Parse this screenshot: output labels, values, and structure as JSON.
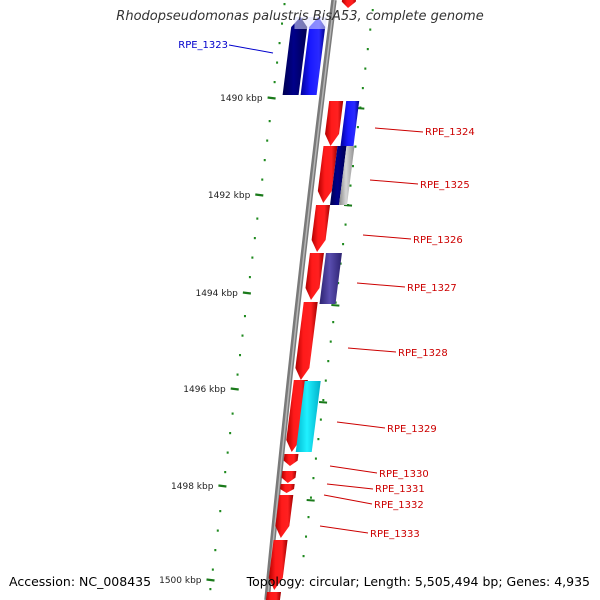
{
  "title": "Rhodopseudomonas palustris BisA53, complete genome",
  "footer": {
    "accession": "Accession: NC_008435",
    "summary": "Topology: circular; Length: 5,505,494 bp; Genes: 4,935"
  },
  "colors": {
    "forward_cds": "#ff0000",
    "reverse_cds": "#0000ff",
    "backbone": "#808080",
    "ticks": "#1a7a1a",
    "dots": "#1f8a1f",
    "label_red": "#cc0000",
    "label_blue": "#0000cc",
    "navy": "#000080",
    "slate": "#4b3f9e",
    "cyan": "#00e5ff",
    "grey": "#b8b8b8"
  },
  "ruler": {
    "ticks": [
      {
        "label": "1490 kbp"
      },
      {
        "label": "1492 kbp"
      },
      {
        "label": "1494 kbp"
      },
      {
        "label": "1496 kbp"
      },
      {
        "label": "1498 kbp"
      },
      {
        "label": "1500 kbp"
      }
    ]
  },
  "genes": [
    {
      "id": "RPE_1323",
      "strand": "reverse",
      "color": "blue"
    },
    {
      "id": "RPE_1324",
      "strand": "forward",
      "color": "red"
    },
    {
      "id": "RPE_1325",
      "strand": "forward",
      "color": "red"
    },
    {
      "id": "RPE_1326",
      "strand": "forward",
      "color": "red"
    },
    {
      "id": "RPE_1327",
      "strand": "forward",
      "color": "red"
    },
    {
      "id": "RPE_1328",
      "strand": "forward",
      "color": "red"
    },
    {
      "id": "RPE_1329",
      "strand": "forward",
      "color": "red"
    },
    {
      "id": "RPE_1330",
      "strand": "forward",
      "color": "red"
    },
    {
      "id": "RPE_1331",
      "strand": "forward",
      "color": "red"
    },
    {
      "id": "RPE_1332",
      "strand": "forward",
      "color": "red"
    },
    {
      "id": "RPE_1333",
      "strand": "forward",
      "color": "red"
    }
  ]
}
